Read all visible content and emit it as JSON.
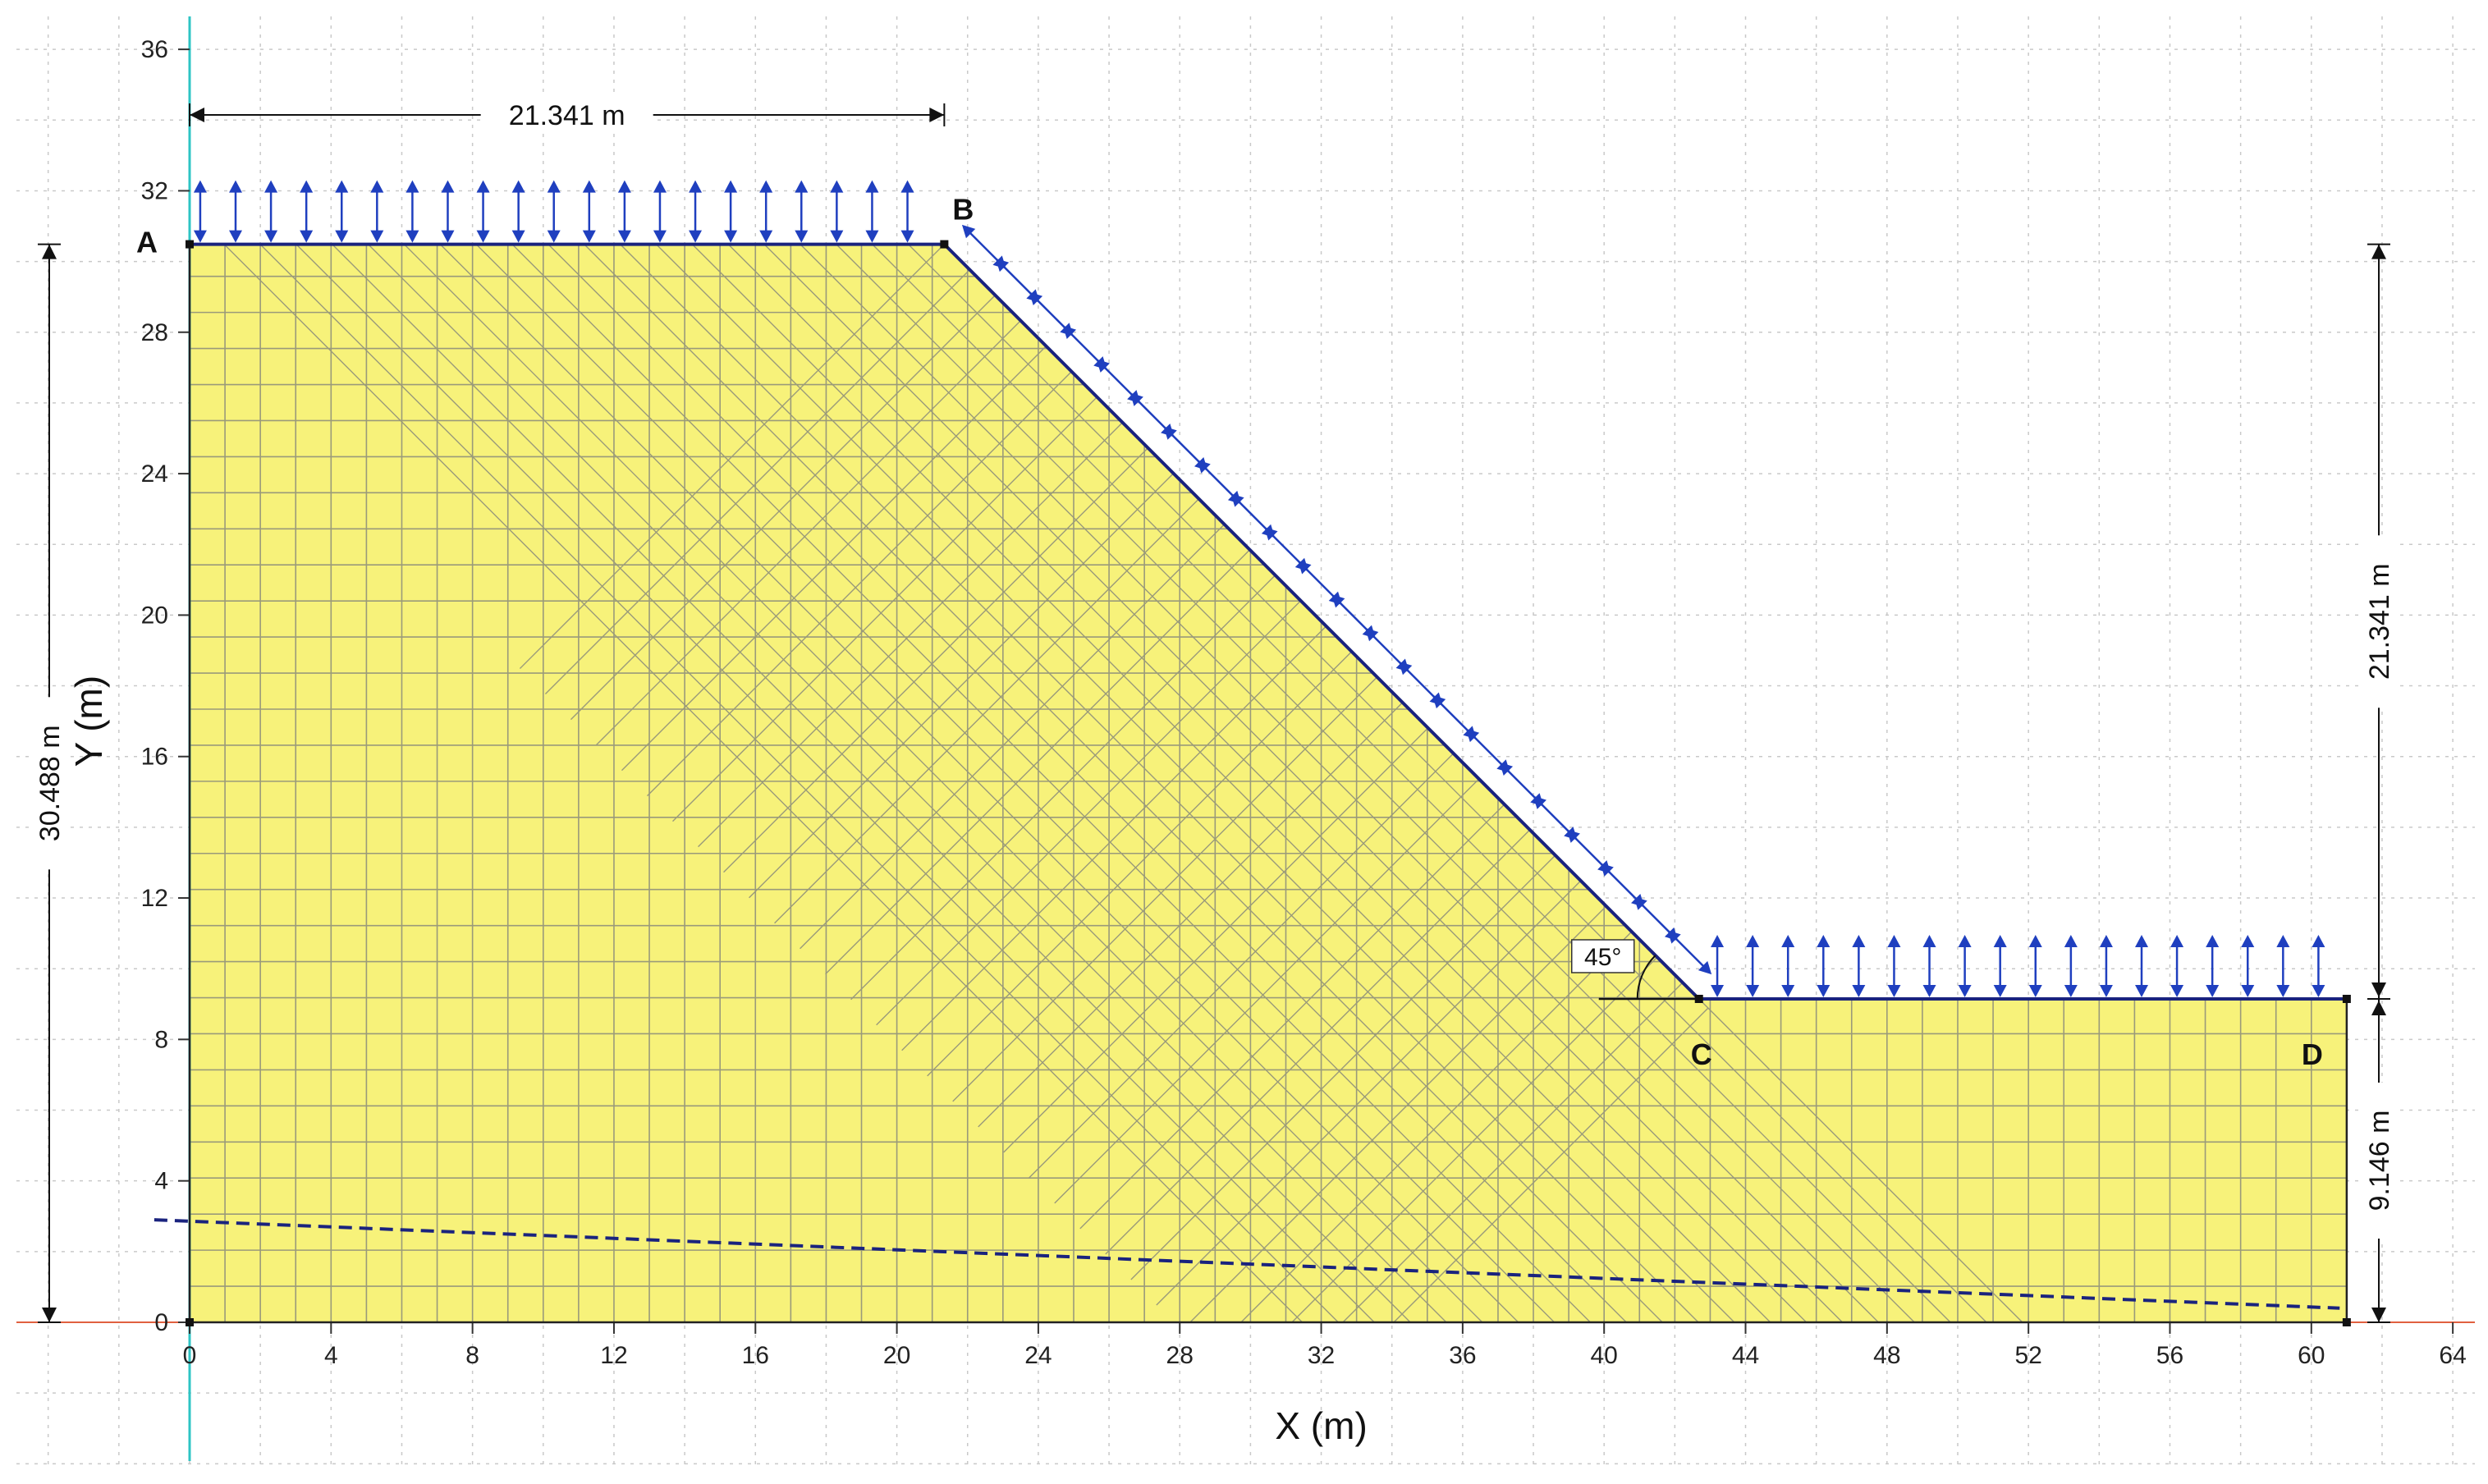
{
  "diagram": {
    "axes": {
      "x_title": "X (m)",
      "y_title": "Y (m)",
      "x_ticks": [
        0,
        4,
        8,
        12,
        16,
        20,
        24,
        28,
        32,
        36,
        40,
        44,
        48,
        52,
        56,
        60,
        64
      ],
      "y_ticks": [
        0,
        4,
        8,
        12,
        16,
        20,
        24,
        28,
        32,
        36
      ]
    },
    "points": {
      "A": {
        "label": "A",
        "x": 0,
        "y": 30.488
      },
      "B": {
        "label": "B",
        "x": 21.341,
        "y": 30.488
      },
      "C": {
        "label": "C",
        "x": 42.682,
        "y": 9.146
      },
      "D": {
        "label": "D",
        "x": 61.0,
        "y": 9.146
      }
    },
    "dimensions": {
      "top_width": "21.341 m",
      "left_height": "30.488 m",
      "right_upper": "21.341 m",
      "right_lower": "9.146 m",
      "slope_angle": "45°"
    },
    "water_table": {
      "start": [
        -1.0,
        2.9
      ],
      "end": [
        60.8,
        0.4
      ]
    },
    "colors": {
      "soil_fill": "#f7f27a",
      "mesh_line": "#9a9a7a",
      "boundary": "#1a237e",
      "arrows": "#1f3fbf",
      "water_table": "#1a237e",
      "grid": "#c9c9c9",
      "y_axis_line": "#2ec4c4",
      "x_axis_line": "#e06040"
    }
  }
}
